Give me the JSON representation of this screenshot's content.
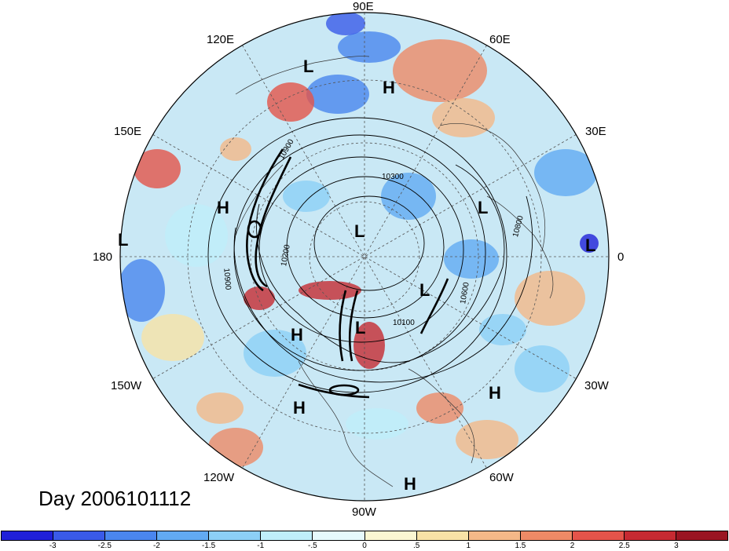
{
  "date_label": "Day 2006101112",
  "longitude_labels": [
    {
      "id": "lon-90e",
      "text": "90E"
    },
    {
      "id": "lon-60e",
      "text": "60E"
    },
    {
      "id": "lon-30e",
      "text": "30E"
    },
    {
      "id": "lon-0",
      "text": "0"
    },
    {
      "id": "lon-30w",
      "text": "30W"
    },
    {
      "id": "lon-60w",
      "text": "60W"
    },
    {
      "id": "lon-90w",
      "text": "90W"
    },
    {
      "id": "lon-120w",
      "text": "120W"
    },
    {
      "id": "lon-150w",
      "text": "150W"
    },
    {
      "id": "lon-180",
      "text": "180"
    },
    {
      "id": "lon-150e",
      "text": "150E"
    },
    {
      "id": "lon-120e",
      "text": "120E"
    }
  ],
  "pressure_markers": [
    {
      "type": "L"
    },
    {
      "type": "H"
    },
    {
      "type": "H"
    },
    {
      "type": "L"
    },
    {
      "type": "L"
    },
    {
      "type": "L"
    },
    {
      "type": "L"
    },
    {
      "type": "L"
    },
    {
      "type": "H"
    },
    {
      "type": "H"
    },
    {
      "type": "H"
    },
    {
      "type": "H"
    }
  ],
  "contour_labels": [
    "10300",
    "10900",
    "10800",
    "10600",
    "10200",
    "10900",
    "10100"
  ],
  "colorbar": {
    "colors": [
      "#2020d8",
      "#3a5ae8",
      "#4a86ee",
      "#62aaf2",
      "#8ccff6",
      "#bfeefa",
      "#e6f9fc",
      "#fbf6d2",
      "#f8e2a6",
      "#f4b888",
      "#ee8a66",
      "#e4544a",
      "#c62a32",
      "#9a1522"
    ],
    "tick_labels": [
      "-3",
      "-2.5",
      "-2",
      "-1.5",
      "-1",
      "-.5",
      "0",
      ".5",
      "1",
      "1.5",
      "2",
      "2.5",
      "3"
    ]
  }
}
